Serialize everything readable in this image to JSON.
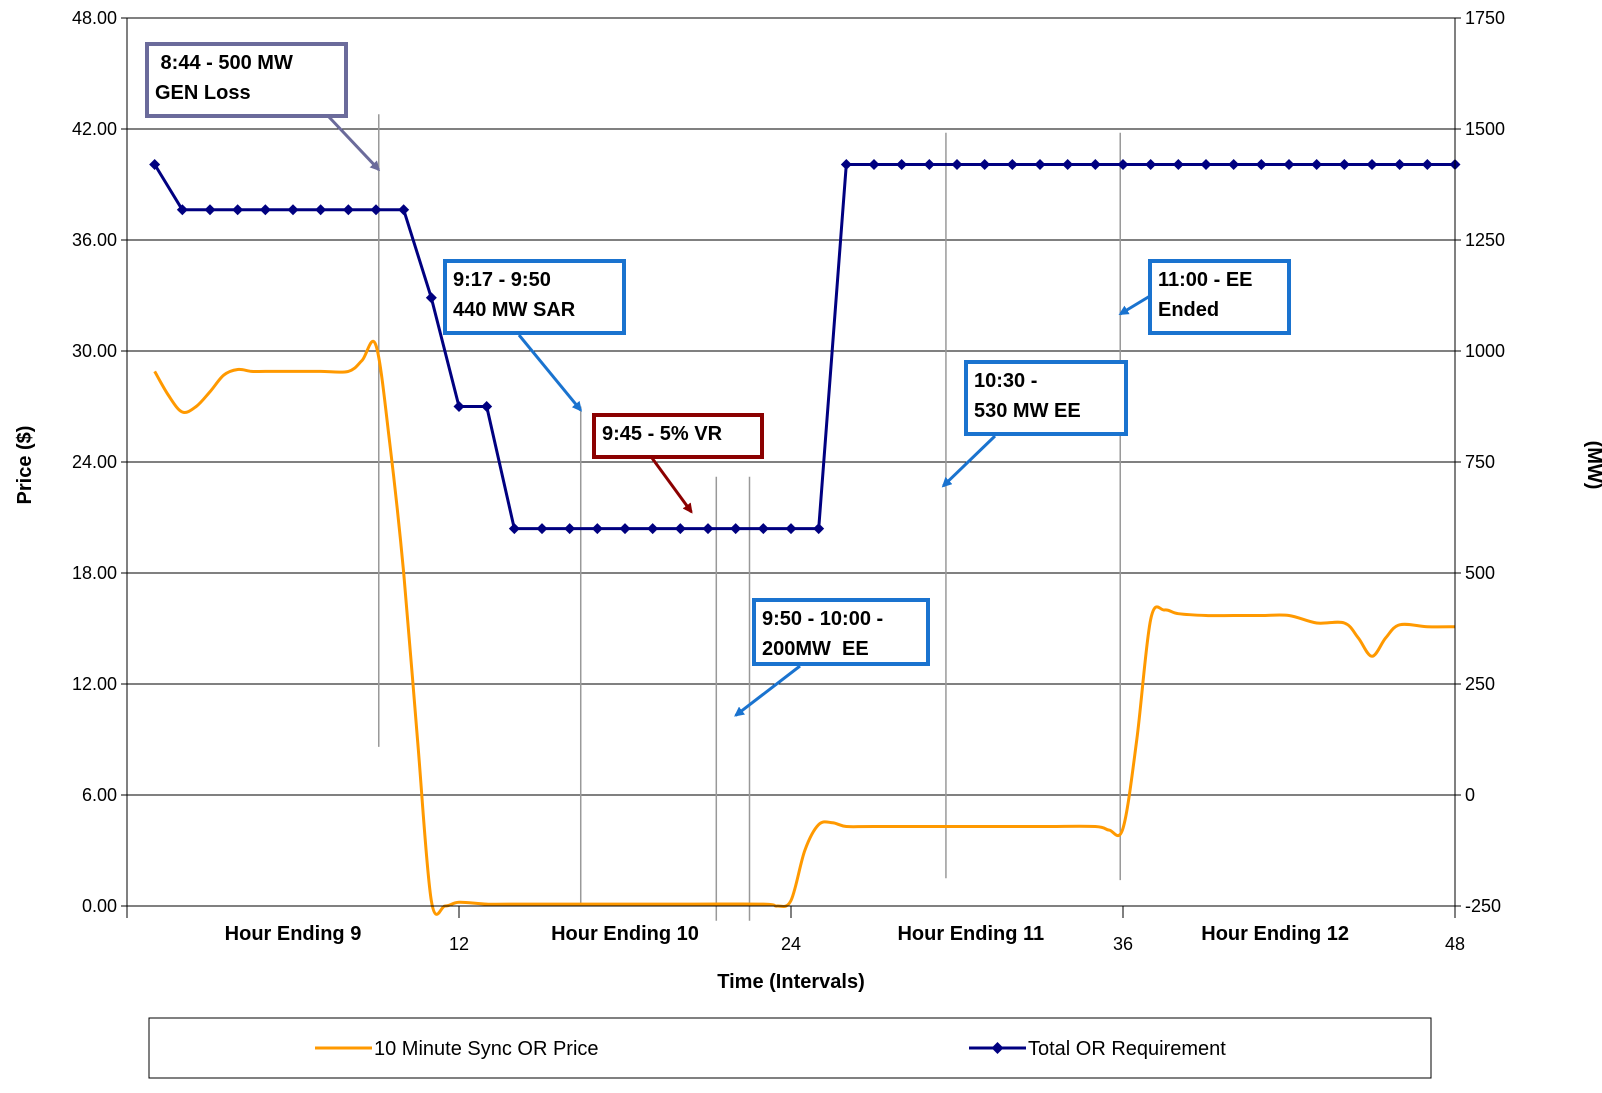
{
  "chart_data": {
    "type": "line",
    "xlabel": "Time (Intervals)",
    "ylabel_left": "Price ($)",
    "ylabel_right": "(MW)",
    "ylim_left": [
      0,
      48
    ],
    "ylim_right": [
      -250,
      1750
    ],
    "xlim": [
      0,
      48
    ],
    "y_ticks_left": [
      "0.00",
      "6.00",
      "12.00",
      "18.00",
      "24.00",
      "30.00",
      "36.00",
      "42.00",
      "48.00"
    ],
    "y_ticks_right": [
      "-250",
      "0",
      "250",
      "500",
      "750",
      "1000",
      "1250",
      "1500",
      "1750"
    ],
    "x_ticks": [
      {
        "x": 12,
        "label": "12"
      },
      {
        "x": 24,
        "label": "24"
      },
      {
        "x": 36,
        "label": "36"
      },
      {
        "x": 48,
        "label": "48"
      }
    ],
    "categories": [
      {
        "x": 6,
        "label": "Hour Ending 9"
      },
      {
        "x": 18,
        "label": "Hour Ending 10"
      },
      {
        "x": 30.5,
        "label": "Hour Ending 11"
      },
      {
        "x": 41.5,
        "label": "Hour Ending 12"
      }
    ],
    "grid": "horizontal",
    "legend_position": "bottom",
    "series": [
      {
        "name": "10 Minute Sync OR Price",
        "axis": "left",
        "color": "#ff9900",
        "marker": "none",
        "x": [
          1,
          1.5,
          2,
          2.5,
          3,
          3.5,
          4,
          4.5,
          5,
          6,
          7,
          8,
          8.5,
          9,
          9.5,
          10,
          10.5,
          11,
          11.5,
          12,
          13,
          14,
          20,
          23,
          23.5,
          24,
          24.5,
          25,
          25.5,
          26,
          27,
          30,
          33,
          35,
          35.5,
          36,
          36.5,
          37,
          37.5,
          38,
          39,
          40,
          41,
          42,
          43,
          44,
          44.5,
          45,
          45.5,
          46,
          47,
          48
        ],
        "y": [
          28.9,
          27.6,
          26.7,
          27.0,
          27.8,
          28.7,
          29.0,
          28.9,
          28.9,
          28.9,
          28.9,
          28.9,
          29.5,
          30.3,
          25.0,
          18.0,
          9.0,
          0.3,
          0.0,
          0.2,
          0.1,
          0.1,
          0.1,
          0.1,
          0.0,
          0.3,
          3.0,
          4.4,
          4.5,
          4.3,
          4.3,
          4.3,
          4.3,
          4.3,
          4.1,
          4.2,
          9.0,
          15.5,
          16.0,
          15.8,
          15.7,
          15.7,
          15.7,
          15.7,
          15.3,
          15.3,
          14.5,
          13.5,
          14.5,
          15.2,
          15.1,
          15.1
        ]
      },
      {
        "name": "Total OR Requirement",
        "axis": "right",
        "color": "#000080",
        "marker": "diamond",
        "x": [
          1,
          2,
          3,
          4,
          5,
          6,
          7,
          8,
          9,
          10,
          11,
          12,
          13,
          14,
          15,
          16,
          17,
          18,
          19,
          20,
          21,
          22,
          23,
          24,
          25,
          26,
          27,
          28,
          29,
          30,
          31,
          32,
          33,
          34,
          35,
          36,
          37,
          38,
          39,
          40,
          41,
          42,
          43,
          44,
          45,
          46,
          47,
          48
        ],
        "y": [
          1420,
          1318,
          1318,
          1318,
          1318,
          1318,
          1318,
          1318,
          1318,
          1318,
          1120,
          875,
          875,
          600,
          600,
          600,
          600,
          600,
          600,
          600,
          600,
          600,
          600,
          600,
          600,
          1420,
          1420,
          1420,
          1420,
          1420,
          1420,
          1420,
          1420,
          1420,
          1420,
          1420,
          1420,
          1420,
          1420,
          1420,
          1420,
          1420,
          1420,
          1420,
          1420,
          1420,
          1420,
          1420
        ]
      }
    ],
    "vertical_markers": [
      {
        "x": 9.1,
        "y_top": 42.8,
        "y_bottom": 8.6
      },
      {
        "x": 16.4,
        "y_top": 27.0,
        "y_bottom": 0
      },
      {
        "x": 21.3,
        "y_top": 23.2,
        "y_bottom": -0.8
      },
      {
        "x": 22.5,
        "y_top": 23.2,
        "y_bottom": -0.8
      },
      {
        "x": 29.6,
        "y_top": 41.8,
        "y_bottom": 1.5
      },
      {
        "x": 35.9,
        "y_top": 41.8,
        "y_bottom": 1.4
      }
    ],
    "annotations": [
      {
        "text": " 8:44 - 500 MW\nGEN Loss",
        "color": "#6b6b9b",
        "arrow_to": [
          9.1,
          39.8
        ]
      },
      {
        "text": "9:17 - 9:50\n440 MW SAR",
        "color": "#1a73cf",
        "arrow_to": [
          16.4,
          26.8
        ]
      },
      {
        "text": "9:45 - 5% VR",
        "color": "#8b0000",
        "arrow_to": [
          20.4,
          21.3
        ]
      },
      {
        "text": "9:50 - 10:00 -\n200MW  EE",
        "color": "#1a73cf",
        "arrow_to": [
          22.0,
          10.3
        ]
      },
      {
        "text": "10:30 -\n530 MW EE",
        "color": "#1a73cf",
        "arrow_to": [
          29.5,
          22.7
        ]
      },
      {
        "text": "11:00 - EE\nEnded",
        "color": "#1a73cf",
        "arrow_to": [
          35.9,
          32.0
        ]
      }
    ]
  }
}
